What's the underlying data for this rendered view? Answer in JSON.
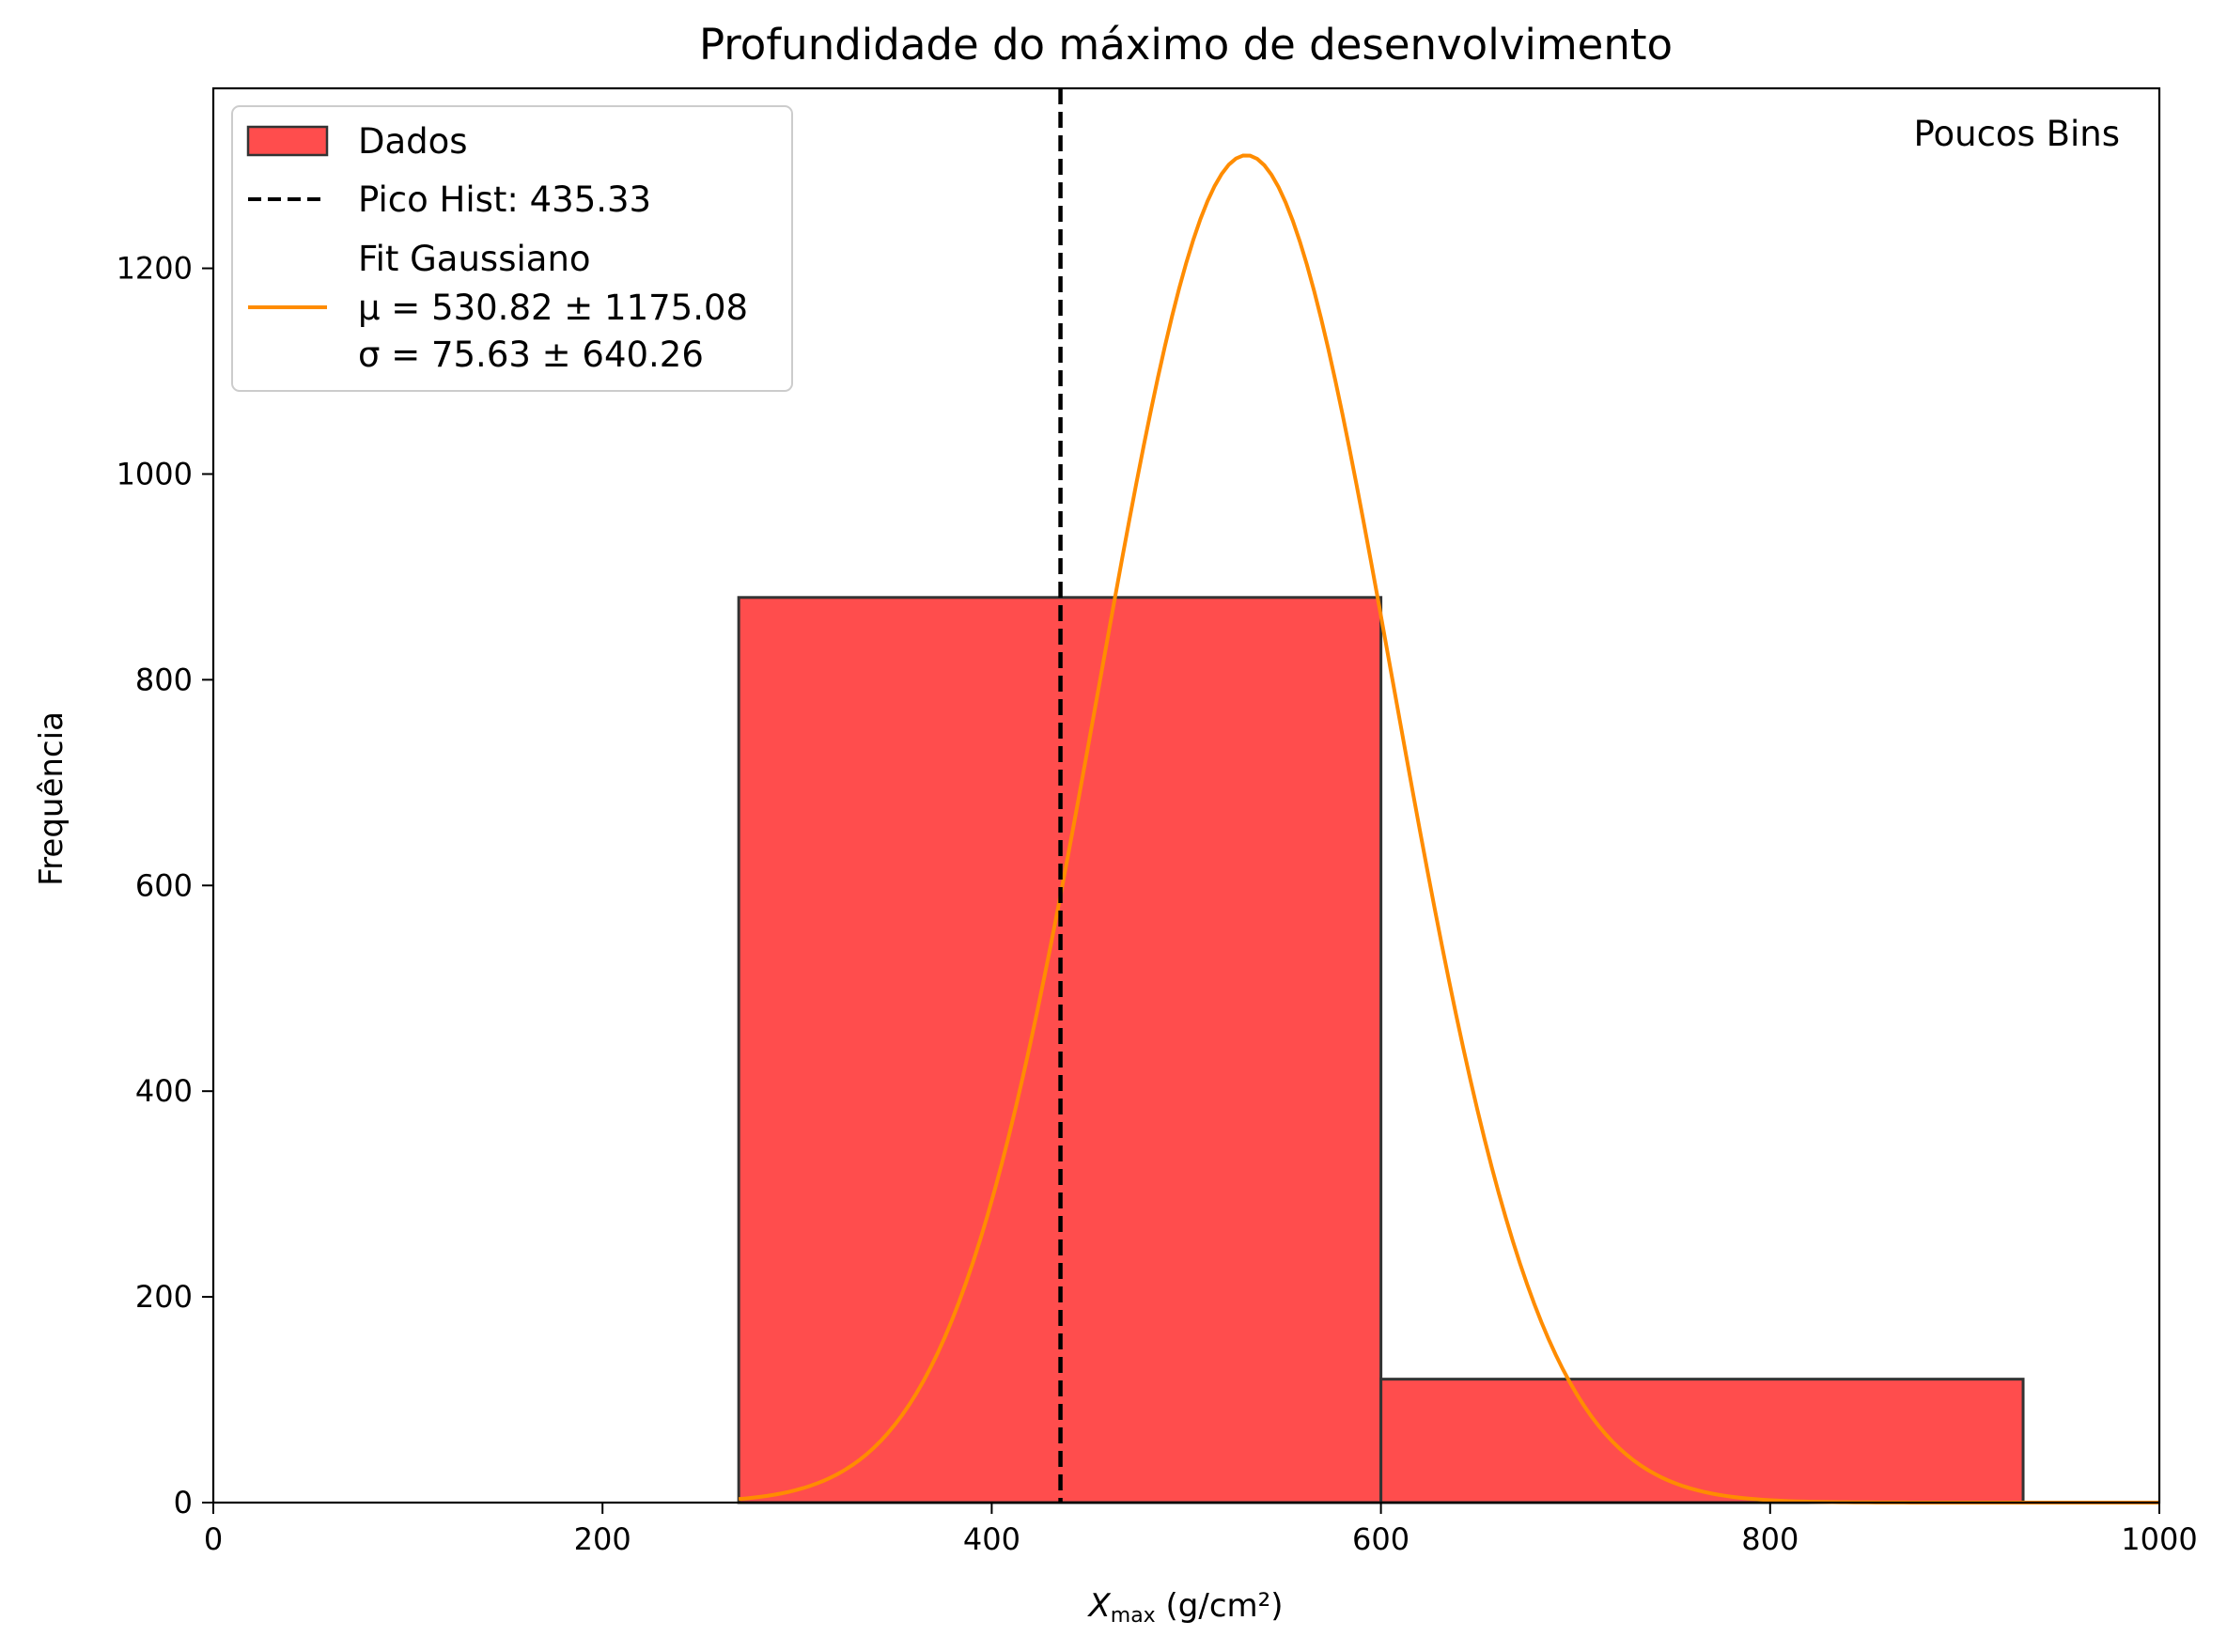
{
  "chart_data": {
    "type": "bar",
    "title": "Profundidade do máximo de desenvolvimento",
    "xlabel_symbol": "X",
    "xlabel_sub": "max",
    "xlabel_unit": " (g/cm²)",
    "ylabel": "Frequência",
    "xlim": [
      0,
      1000
    ],
    "ylim": [
      0,
      1375
    ],
    "xticks": [
      0,
      200,
      400,
      600,
      800,
      1000
    ],
    "yticks": [
      0,
      200,
      400,
      600,
      800,
      1000,
      1200
    ],
    "grid": false,
    "legend_position": "upper-left",
    "bins": [
      {
        "x0": 270,
        "x1": 600,
        "value": 880
      },
      {
        "x0": 600,
        "x1": 930,
        "value": 120
      }
    ],
    "peak_line": {
      "x": 435.33,
      "label": "Pico Hist: 435.33"
    },
    "gaussian_fit": {
      "mu": 530.82,
      "sigma": 75.63,
      "amplitude": 1310,
      "x_range": [
        270,
        1000
      ],
      "label_title": "Fit Gaussiano",
      "label_mu": "μ = 530.82 ± 1175.08",
      "label_sigma": "σ = 75.63 ± 640.26"
    },
    "legend": {
      "dados": "Dados",
      "pico": "Pico Hist: 435.33",
      "fit_title": "Fit Gaussiano",
      "fit_mu": "μ = 530.82 ± 1175.08",
      "fit_sigma": "σ = 75.63 ± 640.26"
    },
    "annotation": "Poucos Bins",
    "colors": {
      "bar_fill": "#ff4d4d",
      "bar_edge": "#333333",
      "fit_line": "#ff8c00",
      "peak_line": "#000000"
    }
  }
}
